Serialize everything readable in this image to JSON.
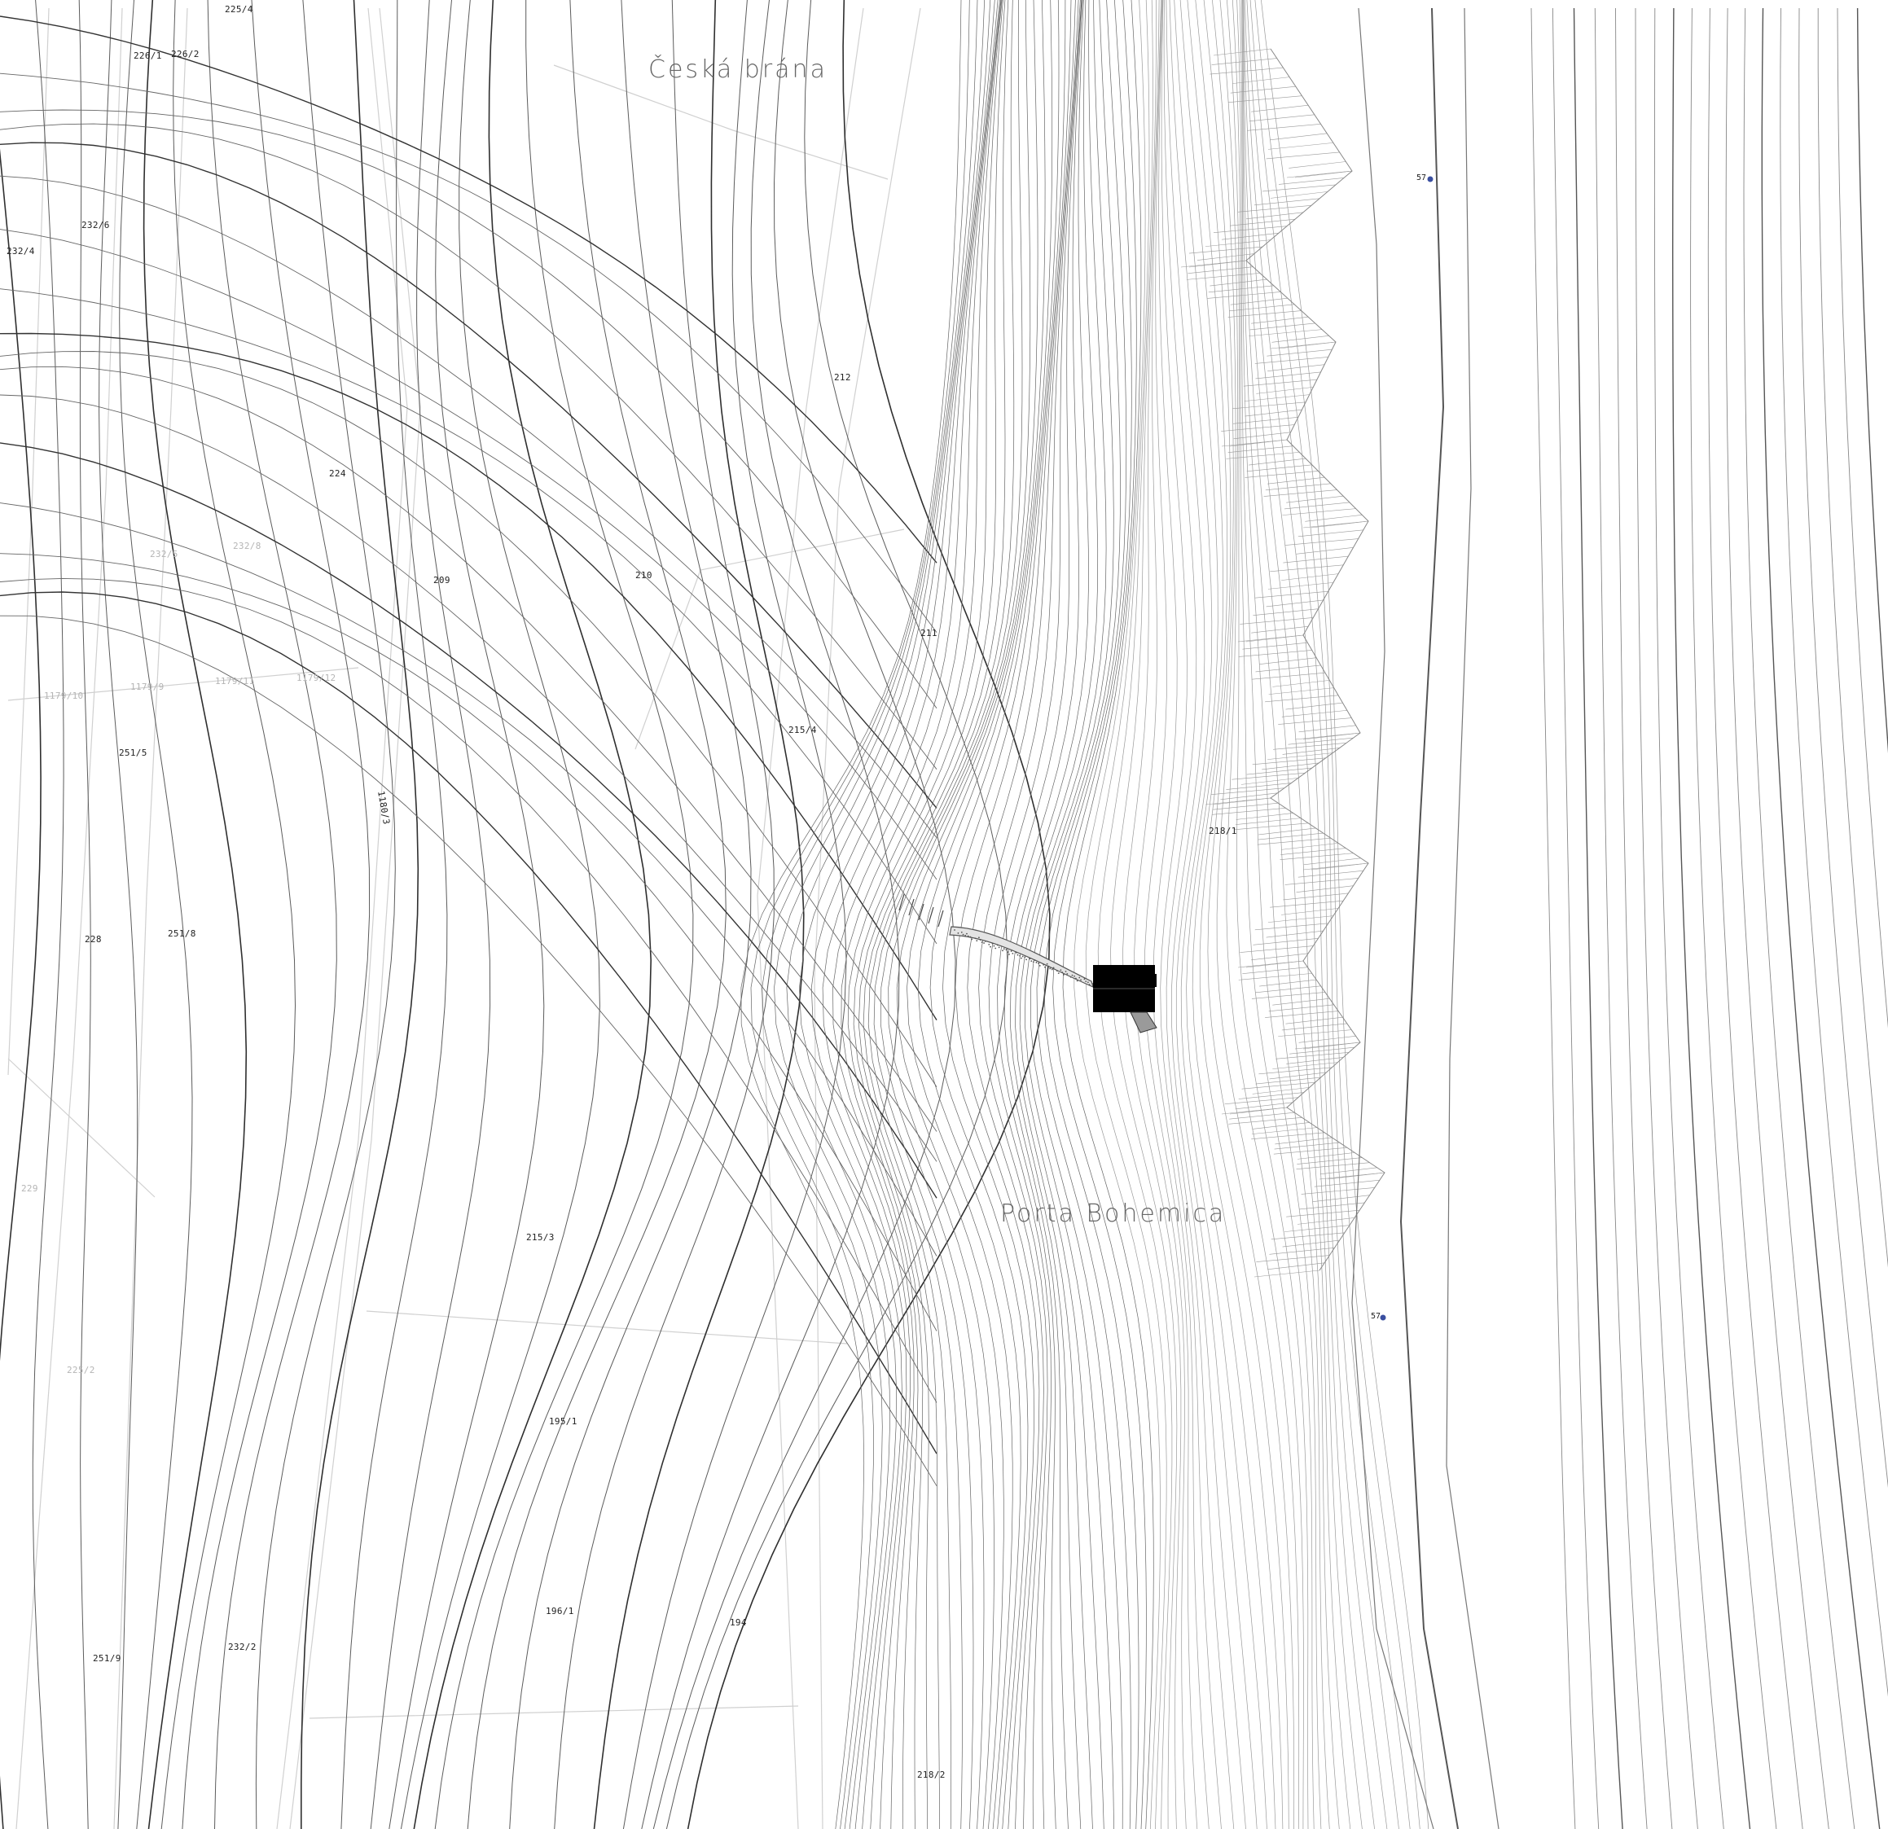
{
  "place_names": [
    {
      "id": "ceska-brana",
      "text": "Česká brána"
    },
    {
      "id": "porta-bohemica",
      "text": "Porta Bohemica"
    }
  ],
  "parcels": [
    {
      "id": "p-225-4",
      "text": "225/4",
      "faint": false
    },
    {
      "id": "p-226-1",
      "text": "226/1",
      "faint": false
    },
    {
      "id": "p-226-2",
      "text": "226/2",
      "faint": false
    },
    {
      "id": "p-232-6",
      "text": "232/6",
      "faint": false
    },
    {
      "id": "p-232-4",
      "text": "232/4",
      "faint": false
    },
    {
      "id": "p-212",
      "text": "212",
      "faint": false
    },
    {
      "id": "p-224",
      "text": "224",
      "faint": false
    },
    {
      "id": "p-232-5",
      "text": "232/5",
      "faint": true
    },
    {
      "id": "p-232-8",
      "text": "232/8",
      "faint": true
    },
    {
      "id": "p-209",
      "text": "209",
      "faint": false
    },
    {
      "id": "p-210",
      "text": "210",
      "faint": false
    },
    {
      "id": "p-211",
      "text": "211",
      "faint": false
    },
    {
      "id": "p-1179-10",
      "text": "1179/10",
      "faint": true
    },
    {
      "id": "p-1179-9",
      "text": "1179/9",
      "faint": true
    },
    {
      "id": "p-1179-11",
      "text": "1179/11",
      "faint": true
    },
    {
      "id": "p-1179-12",
      "text": "1179/12",
      "faint": true
    },
    {
      "id": "p-215-4",
      "text": "215/4",
      "faint": false
    },
    {
      "id": "p-251-5",
      "text": "251/5",
      "faint": false
    },
    {
      "id": "p-1180-3",
      "text": "1180/3",
      "faint": false
    },
    {
      "id": "p-218-1",
      "text": "218/1",
      "faint": false
    },
    {
      "id": "p-228",
      "text": "228",
      "faint": false
    },
    {
      "id": "p-251-8",
      "text": "251/8",
      "faint": false
    },
    {
      "id": "p-229",
      "text": "229",
      "faint": true
    },
    {
      "id": "p-215-3",
      "text": "215/3",
      "faint": false
    },
    {
      "id": "p-225-2",
      "text": "225/2",
      "faint": true
    },
    {
      "id": "p-195-1",
      "text": "195/1",
      "faint": false
    },
    {
      "id": "p-196-1",
      "text": "196/1",
      "faint": false
    },
    {
      "id": "p-194",
      "text": "194",
      "faint": false
    },
    {
      "id": "p-251-9",
      "text": "251/9",
      "faint": false
    },
    {
      "id": "p-232-2",
      "text": "232/2",
      "faint": false
    },
    {
      "id": "p-218-2",
      "text": "218/2",
      "faint": false
    }
  ],
  "markers": [
    {
      "id": "m-north",
      "text": "57",
      "color": "#3a4fa0"
    },
    {
      "id": "m-south",
      "text": "57",
      "color": "#3a4fa0"
    }
  ],
  "colors": {
    "background": "#ffffff",
    "contour_dark": "#3a3a3a",
    "contour_mid": "#666666",
    "parcel_line": "#d0d0d0",
    "rock_face": "#9a9a9a",
    "building": "#000000",
    "marker": "#3a4fa0"
  }
}
